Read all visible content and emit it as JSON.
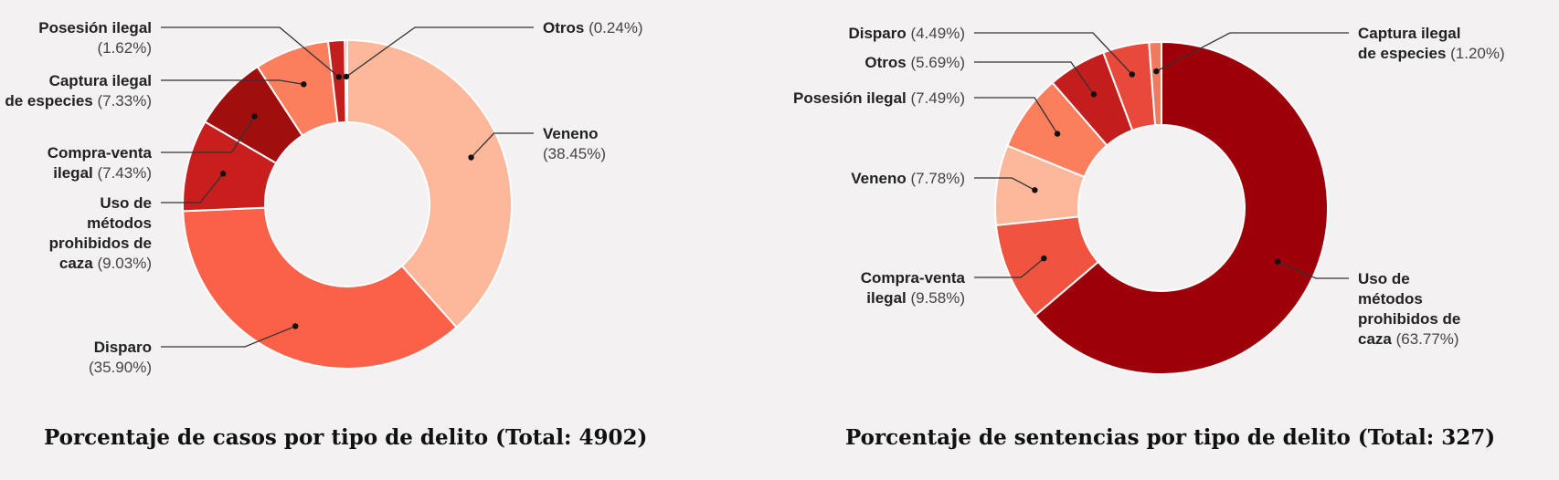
{
  "chart_data": [
    {
      "type": "pie",
      "title": "Porcentaje de casos por tipo de delito (Total: 4902)",
      "slices": [
        {
          "name": [
            "Veneno"
          ],
          "pct": "(38.45%)",
          "value": 38.45,
          "color": "#fdb79a"
        },
        {
          "name": [
            "Disparo"
          ],
          "pct": "(35.90%)",
          "value": 35.9,
          "color": "#fb6049"
        },
        {
          "name": [
            "Uso de",
            "métodos",
            "prohibidos de",
            "caza"
          ],
          "pct": "(9.03%)",
          "value": 9.03,
          "color": "#c81e1e"
        },
        {
          "name": [
            "Compra-venta",
            "ilegal"
          ],
          "pct": "(7.43%)",
          "value": 7.43,
          "color": "#a10e0e"
        },
        {
          "name": [
            "Captura ilegal",
            "de especies"
          ],
          "pct": "(7.33%)",
          "value": 7.33,
          "color": "#fb7e5d"
        },
        {
          "name": [
            "Posesión ilegal"
          ],
          "pct": "(1.62%)",
          "value": 1.62,
          "color": "#c41d1d"
        },
        {
          "name": [
            "Otros"
          ],
          "pct": "(0.24%)",
          "value": 0.24,
          "color": "#fb8a6b"
        }
      ]
    },
    {
      "type": "pie",
      "title": "Porcentaje de sentencias por tipo de delito (Total: 327)",
      "slices": [
        {
          "name": [
            "Uso de",
            "métodos",
            "prohibidos de",
            "caza"
          ],
          "pct": "(63.77%)",
          "value": 63.77,
          "color": "#9e0009"
        },
        {
          "name": [
            "Compra-venta",
            "ilegal"
          ],
          "pct": "(9.58%)",
          "value": 9.58,
          "color": "#f0533f"
        },
        {
          "name": [
            "Veneno"
          ],
          "pct": "(7.78%)",
          "value": 7.78,
          "color": "#fdb79a"
        },
        {
          "name": [
            "Posesión ilegal"
          ],
          "pct": "(7.49%)",
          "value": 7.49,
          "color": "#fb7e5d"
        },
        {
          "name": [
            "Otros"
          ],
          "pct": "(5.69%)",
          "value": 5.69,
          "color": "#c41d1d"
        },
        {
          "name": [
            "Disparo"
          ],
          "pct": "(4.49%)",
          "value": 4.49,
          "color": "#e8493a"
        },
        {
          "name": [
            "Captura ilegal",
            "de especies"
          ],
          "pct": "(1.20%)",
          "value": 1.2,
          "color": "#f37a60"
        }
      ]
    }
  ]
}
